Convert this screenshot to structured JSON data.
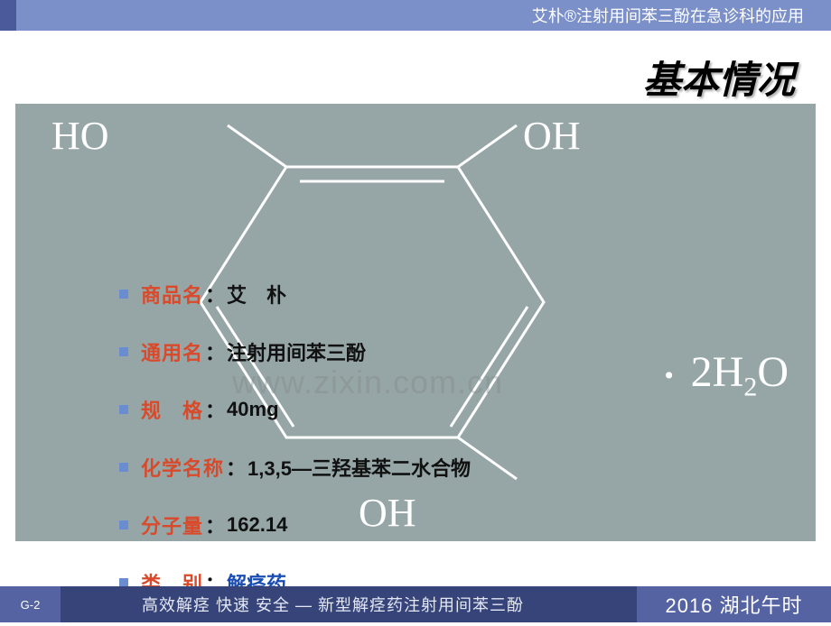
{
  "header": {
    "title": "艾朴®注射用间苯三酚在急诊科的应用",
    "accent_color": "#4a5a9a",
    "bar_color": "#7b8fc8",
    "text_color": "#ffffff"
  },
  "slide": {
    "title": "基本情况",
    "title_fontsize": 42,
    "title_color": "#000000"
  },
  "diagram": {
    "background_color": "#96a6a6",
    "molecule": {
      "line_color": "#ffffff",
      "line_width": 3,
      "label_color": "#ffffff",
      "label_fontsize": 44,
      "labels": {
        "top_left": "HO",
        "top_right": "OH",
        "bottom": "OH"
      }
    },
    "hydrate_text": "2H₂O",
    "hydrate_dot": "·",
    "watermark": "www.zixin.com.cn"
  },
  "info": {
    "bullet_color": "#6a8cd0",
    "label_color": "#d94a2b",
    "value_color": "#111111",
    "link_color": "#1a4db3",
    "sep": "：",
    "row_fontsize": 22,
    "rows": [
      {
        "label": "商品名",
        "value": "艾　朴",
        "link": false
      },
      {
        "label": "通用名",
        "value": "注射用间苯三酚",
        "link": false
      },
      {
        "label": "规　格",
        "value": "40mg",
        "link": false
      },
      {
        "label": "化学名称",
        "value": "1,3,5—三羟基苯二水合物",
        "link": false
      },
      {
        "label": "分子量",
        "value": "162.14",
        "link": false
      },
      {
        "label": "类　别",
        "value": "解痉药",
        "link": true
      }
    ]
  },
  "footer": {
    "page_num": "G-2",
    "tagline": "高效解痉 快速 安全 — 新型解痉药注射用间苯三酚",
    "brand": "2016 湖北午时",
    "left_bg": "#5563a3",
    "mid_bg": "#37447a",
    "right_bg": "#5563a3",
    "text_color": "#ffffff"
  }
}
